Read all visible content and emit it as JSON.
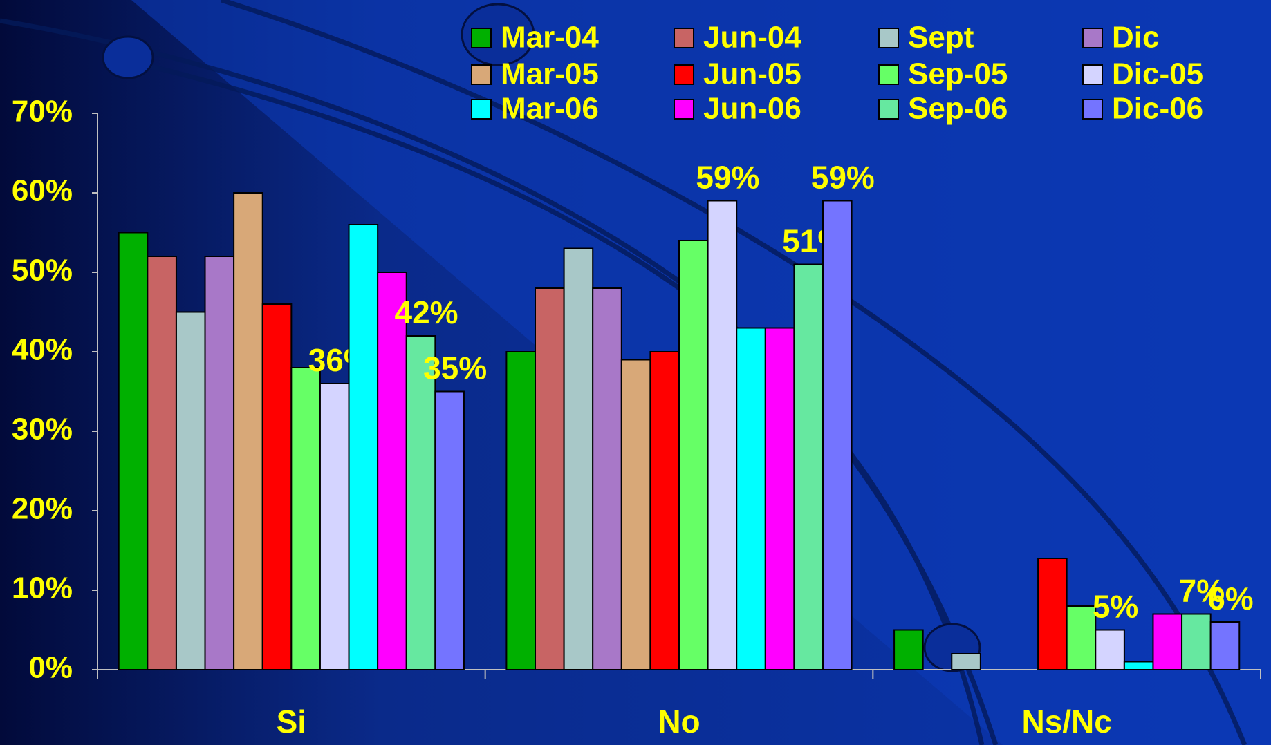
{
  "chart_data": {
    "type": "bar",
    "categories": [
      "Si",
      "No",
      "Ns/Nc"
    ],
    "series": [
      {
        "name": "Mar-04",
        "color": "#00b000",
        "values": [
          55,
          40,
          5
        ]
      },
      {
        "name": "Jun-04",
        "color": "#c86464",
        "values": [
          52,
          48,
          null
        ]
      },
      {
        "name": "Sept",
        "color": "#a8c8c8",
        "values": [
          45,
          53,
          2
        ]
      },
      {
        "name": "Dic",
        "color": "#a878c8",
        "values": [
          52,
          48,
          null
        ]
      },
      {
        "name": "Mar-05",
        "color": "#d8a878",
        "values": [
          60,
          39,
          null
        ]
      },
      {
        "name": "Jun-05",
        "color": "#ff0000",
        "values": [
          46,
          40,
          14
        ]
      },
      {
        "name": "Sep-05",
        "color": "#66ff66",
        "values": [
          38,
          54,
          8
        ]
      },
      {
        "name": "Dic-05",
        "color": "#d4d4ff",
        "values": [
          36,
          59,
          5
        ],
        "value_labels": [
          "36%",
          "59%",
          "5%"
        ]
      },
      {
        "name": "Mar-06",
        "color": "#00ffff",
        "values": [
          56,
          43,
          1
        ]
      },
      {
        "name": "Jun-06",
        "color": "#ff00ff",
        "values": [
          50,
          43,
          7
        ]
      },
      {
        "name": "Sep-06",
        "color": "#66e8a0",
        "values": [
          42,
          51,
          7
        ],
        "value_labels": [
          "42%",
          "51%",
          "7%"
        ]
      },
      {
        "name": "Dic-06",
        "color": "#7474ff",
        "values": [
          35,
          59,
          6
        ],
        "value_labels": [
          "35%",
          "59%",
          "6%"
        ]
      }
    ],
    "ylim": [
      0,
      70
    ],
    "yticks": [
      {
        "value": 0,
        "label": "0%"
      },
      {
        "value": 10,
        "label": "10%"
      },
      {
        "value": 20,
        "label": "20%"
      },
      {
        "value": 30,
        "label": "30%"
      },
      {
        "value": 40,
        "label": "40%"
      },
      {
        "value": 50,
        "label": "50%"
      },
      {
        "value": 60,
        "label": "60%"
      },
      {
        "value": 70,
        "label": "70%"
      }
    ],
    "grid": false
  }
}
